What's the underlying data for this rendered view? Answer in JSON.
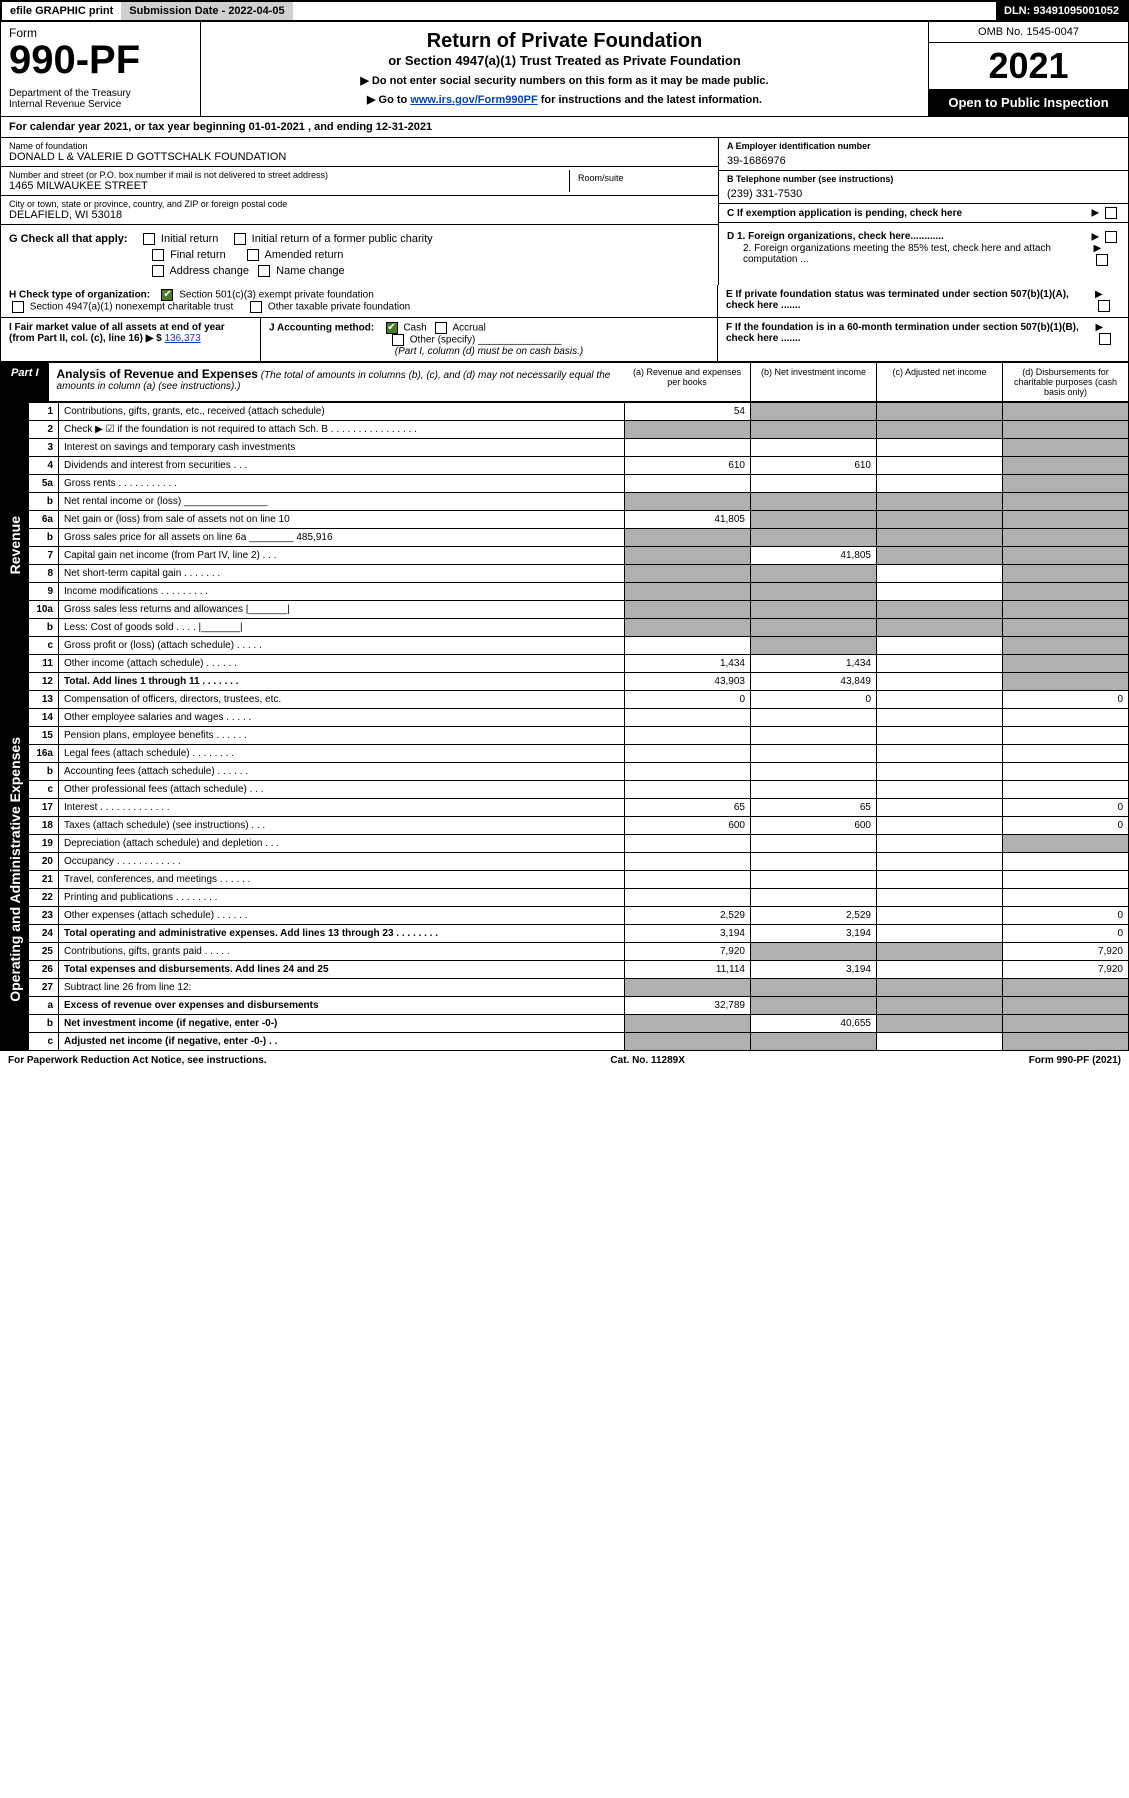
{
  "top": {
    "efile": "efile GRAPHIC print",
    "sub_lbl": "Submission Date - 2022-04-05",
    "dln": "DLN: 93491095001052"
  },
  "header": {
    "form_word": "Form",
    "form_num": "990-PF",
    "dept": "Department of the Treasury\nInternal Revenue Service",
    "title": "Return of Private Foundation",
    "subtitle": "or Section 4947(a)(1) Trust Treated as Private Foundation",
    "notice1": "▶ Do not enter social security numbers on this form as it may be made public.",
    "notice2": "▶ Go to www.irs.gov/Form990PF for instructions and the latest information.",
    "omb": "OMB No. 1545-0047",
    "year": "2021",
    "otp": "Open to Public Inspection"
  },
  "cal": "For calendar year 2021, or tax year beginning 01-01-2021                     , and ending 12-31-2021",
  "id": {
    "name_lbl": "Name of foundation",
    "name": "DONALD L & VALERIE D GOTTSCHALK FOUNDATION",
    "addr_lbl": "Number and street (or P.O. box number if mail is not delivered to street address)",
    "addr": "1465 MILWAUKEE STREET",
    "room_lbl": "Room/suite",
    "city_lbl": "City or town, state or province, country, and ZIP or foreign postal code",
    "city": "DELAFIELD, WI  53018",
    "ein_lbl": "A Employer identification number",
    "ein": "39-1686976",
    "tel_lbl": "B Telephone number (see instructions)",
    "tel": "(239) 331-7530",
    "c": "C If exemption application is pending, check here"
  },
  "g": {
    "lbl": "G Check all that apply:",
    "o1": "Initial return",
    "o2": "Initial return of a former public charity",
    "o3": "Final return",
    "o4": "Amended return",
    "o5": "Address change",
    "o6": "Name change"
  },
  "d": {
    "d1": "D 1. Foreign organizations, check here............",
    "d2": "2. Foreign organizations meeting the 85% test, check here and attach computation ...",
    "e": "E  If private foundation status was terminated under section 507(b)(1)(A), check here .......",
    "f": "F  If the foundation is in a 60-month termination under section 507(b)(1)(B), check here ......."
  },
  "h": {
    "lbl": "H Check type of organization:",
    "o1": "Section 501(c)(3) exempt private foundation",
    "o2": "Section 4947(a)(1) nonexempt charitable trust",
    "o3": "Other taxable private foundation"
  },
  "i": {
    "lbl": "I Fair market value of all assets at end of year (from Part II, col. (c), line 16) ▶ $",
    "val": "136,373"
  },
  "j": {
    "lbl": "J Accounting method:",
    "o1": "Cash",
    "o2": "Accrual",
    "o3": "Other (specify)",
    "note": "(Part I, column (d) must be on cash basis.)"
  },
  "part1": {
    "lbl": "Part I",
    "title": "Analysis of Revenue and Expenses",
    "note": "(The total of amounts in columns (b), (c), and (d) may not necessarily equal the amounts in column (a) (see instructions).)",
    "col_a": "(a)   Revenue and expenses per books",
    "col_b": "(b)   Net investment income",
    "col_c": "(c)   Adjusted net income",
    "col_d": "(d)   Disbursements for charitable purposes (cash basis only)"
  },
  "sides": {
    "rev": "Revenue",
    "exp": "Operating and Administrative Expenses"
  },
  "rows": [
    {
      "n": "1",
      "d": "Contributions, gifts, grants, etc., received (attach schedule)",
      "a": "54",
      "b": "",
      "c": "",
      "dd": "",
      "sa": false,
      "sb": true,
      "sc": true,
      "sd": true
    },
    {
      "n": "2",
      "d": "Check ▶ ☑ if the foundation is not required to attach Sch. B      .  .  .  .  .  .  .  .  .  .  .  .  .  .  .  .",
      "a": "",
      "b": "",
      "c": "",
      "dd": "",
      "sa": true,
      "sb": true,
      "sc": true,
      "sd": true
    },
    {
      "n": "3",
      "d": "Interest on savings and temporary cash investments",
      "a": "",
      "b": "",
      "c": "",
      "dd": "",
      "sa": false,
      "sb": false,
      "sc": false,
      "sd": true
    },
    {
      "n": "4",
      "d": "Dividends and interest from securities    .   .   .",
      "a": "610",
      "b": "610",
      "c": "",
      "dd": "",
      "sa": false,
      "sb": false,
      "sc": false,
      "sd": true
    },
    {
      "n": "5a",
      "d": "Gross rents     .   .   .   .   .   .   .   .   .   .   .",
      "a": "",
      "b": "",
      "c": "",
      "dd": "",
      "sa": false,
      "sb": false,
      "sc": false,
      "sd": true
    },
    {
      "n": "b",
      "d": "Net rental income or (loss)   _______________",
      "a": "",
      "b": "",
      "c": "",
      "dd": "",
      "sa": true,
      "sb": true,
      "sc": true,
      "sd": true
    },
    {
      "n": "6a",
      "d": "Net gain or (loss) from sale of assets not on line 10",
      "a": "41,805",
      "b": "",
      "c": "",
      "dd": "",
      "sa": false,
      "sb": true,
      "sc": true,
      "sd": true
    },
    {
      "n": "b",
      "d": "Gross sales price for all assets on line 6a ________ 485,916",
      "a": "",
      "b": "",
      "c": "",
      "dd": "",
      "sa": true,
      "sb": true,
      "sc": true,
      "sd": true
    },
    {
      "n": "7",
      "d": "Capital gain net income (from Part IV, line 2)   .   .   .",
      "a": "",
      "b": "41,805",
      "c": "",
      "dd": "",
      "sa": true,
      "sb": false,
      "sc": true,
      "sd": true
    },
    {
      "n": "8",
      "d": "Net short-term capital gain  .   .   .   .   .   .   .",
      "a": "",
      "b": "",
      "c": "",
      "dd": "",
      "sa": true,
      "sb": true,
      "sc": false,
      "sd": true
    },
    {
      "n": "9",
      "d": "Income modifications .   .   .   .   .   .   .   .   .",
      "a": "",
      "b": "",
      "c": "",
      "dd": "",
      "sa": true,
      "sb": true,
      "sc": false,
      "sd": true
    },
    {
      "n": "10a",
      "d": "Gross sales less returns and allowances  |_______|",
      "a": "",
      "b": "",
      "c": "",
      "dd": "",
      "sa": true,
      "sb": true,
      "sc": true,
      "sd": true
    },
    {
      "n": "b",
      "d": "Less: Cost of goods sold    .   .   .   .   |_______|",
      "a": "",
      "b": "",
      "c": "",
      "dd": "",
      "sa": true,
      "sb": true,
      "sc": true,
      "sd": true
    },
    {
      "n": "c",
      "d": "Gross profit or (loss) (attach schedule)    .   .   .   .   .",
      "a": "",
      "b": "",
      "c": "",
      "dd": "",
      "sa": false,
      "sb": true,
      "sc": false,
      "sd": true
    },
    {
      "n": "11",
      "d": "Other income (attach schedule)   .   .   .   .   .   .",
      "a": "1,434",
      "b": "1,434",
      "c": "",
      "dd": "",
      "sa": false,
      "sb": false,
      "sc": false,
      "sd": true
    },
    {
      "n": "12",
      "d": "Total. Add lines 1 through 11  .   .   .   .   .   .   .",
      "a": "43,903",
      "b": "43,849",
      "c": "",
      "dd": "",
      "sa": false,
      "sb": false,
      "sc": false,
      "sd": true,
      "bold": true
    },
    {
      "n": "13",
      "d": "Compensation of officers, directors, trustees, etc.",
      "a": "0",
      "b": "0",
      "c": "",
      "dd": "0",
      "sa": false,
      "sb": false,
      "sc": false,
      "sd": false
    },
    {
      "n": "14",
      "d": "Other employee salaries and wages    .   .   .   .   .",
      "a": "",
      "b": "",
      "c": "",
      "dd": "",
      "sa": false,
      "sb": false,
      "sc": false,
      "sd": false
    },
    {
      "n": "15",
      "d": "Pension plans, employee benefits  .   .   .   .   .   .",
      "a": "",
      "b": "",
      "c": "",
      "dd": "",
      "sa": false,
      "sb": false,
      "sc": false,
      "sd": false
    },
    {
      "n": "16a",
      "d": "Legal fees (attach schedule) .   .   .   .   .   .   .   .",
      "a": "",
      "b": "",
      "c": "",
      "dd": "",
      "sa": false,
      "sb": false,
      "sc": false,
      "sd": false
    },
    {
      "n": "b",
      "d": "Accounting fees (attach schedule) .   .   .   .   .   .",
      "a": "",
      "b": "",
      "c": "",
      "dd": "",
      "sa": false,
      "sb": false,
      "sc": false,
      "sd": false
    },
    {
      "n": "c",
      "d": "Other professional fees (attach schedule)   .   .   .",
      "a": "",
      "b": "",
      "c": "",
      "dd": "",
      "sa": false,
      "sb": false,
      "sc": false,
      "sd": false
    },
    {
      "n": "17",
      "d": "Interest .   .   .   .   .   .   .   .   .   .   .   .   .",
      "a": "65",
      "b": "65",
      "c": "",
      "dd": "0",
      "sa": false,
      "sb": false,
      "sc": false,
      "sd": false
    },
    {
      "n": "18",
      "d": "Taxes (attach schedule) (see instructions)    .   .   .",
      "a": "600",
      "b": "600",
      "c": "",
      "dd": "0",
      "sa": false,
      "sb": false,
      "sc": false,
      "sd": false
    },
    {
      "n": "19",
      "d": "Depreciation (attach schedule) and depletion   .   .   .",
      "a": "",
      "b": "",
      "c": "",
      "dd": "",
      "sa": false,
      "sb": false,
      "sc": false,
      "sd": true
    },
    {
      "n": "20",
      "d": "Occupancy .   .   .   .   .   .   .   .   .   .   .   .",
      "a": "",
      "b": "",
      "c": "",
      "dd": "",
      "sa": false,
      "sb": false,
      "sc": false,
      "sd": false
    },
    {
      "n": "21",
      "d": "Travel, conferences, and meetings .   .   .   .   .   .",
      "a": "",
      "b": "",
      "c": "",
      "dd": "",
      "sa": false,
      "sb": false,
      "sc": false,
      "sd": false
    },
    {
      "n": "22",
      "d": "Printing and publications .   .   .   .   .   .   .   .",
      "a": "",
      "b": "",
      "c": "",
      "dd": "",
      "sa": false,
      "sb": false,
      "sc": false,
      "sd": false
    },
    {
      "n": "23",
      "d": "Other expenses (attach schedule) .   .   .   .   .   .",
      "a": "2,529",
      "b": "2,529",
      "c": "",
      "dd": "0",
      "sa": false,
      "sb": false,
      "sc": false,
      "sd": false
    },
    {
      "n": "24",
      "d": "Total operating and administrative expenses. Add lines 13 through 23  .   .   .   .   .   .   .   .",
      "a": "3,194",
      "b": "3,194",
      "c": "",
      "dd": "0",
      "sa": false,
      "sb": false,
      "sc": false,
      "sd": false,
      "bold": true
    },
    {
      "n": "25",
      "d": "Contributions, gifts, grants paid    .   .   .   .   .",
      "a": "7,920",
      "b": "",
      "c": "",
      "dd": "7,920",
      "sa": false,
      "sb": true,
      "sc": true,
      "sd": false
    },
    {
      "n": "26",
      "d": "Total expenses and disbursements. Add lines 24 and 25",
      "a": "11,114",
      "b": "3,194",
      "c": "",
      "dd": "7,920",
      "sa": false,
      "sb": false,
      "sc": false,
      "sd": false,
      "bold": true
    },
    {
      "n": "27",
      "d": "Subtract line 26 from line 12:",
      "a": "",
      "b": "",
      "c": "",
      "dd": "",
      "sa": true,
      "sb": true,
      "sc": true,
      "sd": true
    },
    {
      "n": "a",
      "d": "Excess of revenue over expenses and disbursements",
      "a": "32,789",
      "b": "",
      "c": "",
      "dd": "",
      "sa": false,
      "sb": true,
      "sc": true,
      "sd": true,
      "bold": true
    },
    {
      "n": "b",
      "d": "Net investment income (if negative, enter -0-)",
      "a": "",
      "b": "40,655",
      "c": "",
      "dd": "",
      "sa": true,
      "sb": false,
      "sc": true,
      "sd": true,
      "bold": true
    },
    {
      "n": "c",
      "d": "Adjusted net income (if negative, enter -0-)   .   .",
      "a": "",
      "b": "",
      "c": "",
      "dd": "",
      "sa": true,
      "sb": true,
      "sc": false,
      "sd": true,
      "bold": true
    }
  ],
  "footer": {
    "left": "For Paperwork Reduction Act Notice, see instructions.",
    "mid": "Cat. No. 11289X",
    "right": "Form 990-PF (2021)"
  }
}
